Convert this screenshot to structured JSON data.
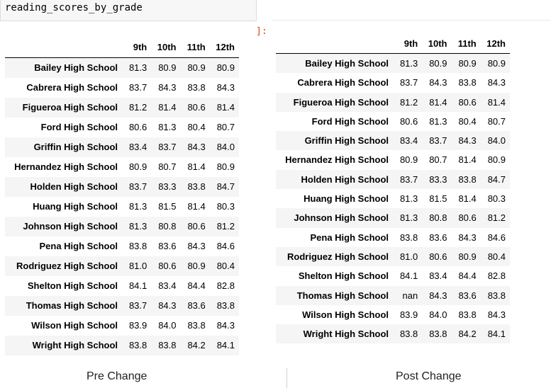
{
  "code_cell": {
    "text": "reading_scores_by_grade"
  },
  "prompt": "]:",
  "columns": [
    "9th",
    "10th",
    "11th",
    "12th"
  ],
  "pre_change": {
    "caption": "Pre Change",
    "rows": [
      {
        "school": "Bailey High School",
        "values": [
          "81.3",
          "80.9",
          "80.9",
          "80.9"
        ]
      },
      {
        "school": "Cabrera High School",
        "values": [
          "83.7",
          "84.3",
          "83.8",
          "84.3"
        ]
      },
      {
        "school": "Figueroa High School",
        "values": [
          "81.2",
          "81.4",
          "80.6",
          "81.4"
        ]
      },
      {
        "school": "Ford High School",
        "values": [
          "80.6",
          "81.3",
          "80.4",
          "80.7"
        ]
      },
      {
        "school": "Griffin High School",
        "values": [
          "83.4",
          "83.7",
          "84.3",
          "84.0"
        ]
      },
      {
        "school": "Hernandez High School",
        "values": [
          "80.9",
          "80.7",
          "81.4",
          "80.9"
        ]
      },
      {
        "school": "Holden High School",
        "values": [
          "83.7",
          "83.3",
          "83.8",
          "84.7"
        ]
      },
      {
        "school": "Huang High School",
        "values": [
          "81.3",
          "81.5",
          "81.4",
          "80.3"
        ]
      },
      {
        "school": "Johnson High School",
        "values": [
          "81.3",
          "80.8",
          "80.6",
          "81.2"
        ]
      },
      {
        "school": "Pena High School",
        "values": [
          "83.8",
          "83.6",
          "84.3",
          "84.6"
        ]
      },
      {
        "school": "Rodriguez High School",
        "values": [
          "81.0",
          "80.6",
          "80.9",
          "80.4"
        ]
      },
      {
        "school": "Shelton High School",
        "values": [
          "84.1",
          "83.4",
          "84.4",
          "82.8"
        ]
      },
      {
        "school": "Thomas High School",
        "values": [
          "83.7",
          "84.3",
          "83.6",
          "83.8"
        ]
      },
      {
        "school": "Wilson High School",
        "values": [
          "83.9",
          "84.0",
          "83.8",
          "84.3"
        ]
      },
      {
        "school": "Wright High School",
        "values": [
          "83.8",
          "83.8",
          "84.2",
          "84.1"
        ]
      }
    ]
  },
  "post_change": {
    "caption": "Post Change",
    "rows": [
      {
        "school": "Bailey High School",
        "values": [
          "81.3",
          "80.9",
          "80.9",
          "80.9"
        ]
      },
      {
        "school": "Cabrera High School",
        "values": [
          "83.7",
          "84.3",
          "83.8",
          "84.3"
        ]
      },
      {
        "school": "Figueroa High School",
        "values": [
          "81.2",
          "81.4",
          "80.6",
          "81.4"
        ]
      },
      {
        "school": "Ford High School",
        "values": [
          "80.6",
          "81.3",
          "80.4",
          "80.7"
        ]
      },
      {
        "school": "Griffin High School",
        "values": [
          "83.4",
          "83.7",
          "84.3",
          "84.0"
        ]
      },
      {
        "school": "Hernandez High School",
        "values": [
          "80.9",
          "80.7",
          "81.4",
          "80.9"
        ]
      },
      {
        "school": "Holden High School",
        "values": [
          "83.7",
          "83.3",
          "83.8",
          "84.7"
        ]
      },
      {
        "school": "Huang High School",
        "values": [
          "81.3",
          "81.5",
          "81.4",
          "80.3"
        ]
      },
      {
        "school": "Johnson High School",
        "values": [
          "81.3",
          "80.8",
          "80.6",
          "81.2"
        ]
      },
      {
        "school": "Pena High School",
        "values": [
          "83.8",
          "83.6",
          "84.3",
          "84.6"
        ]
      },
      {
        "school": "Rodriguez High School",
        "values": [
          "81.0",
          "80.6",
          "80.9",
          "80.4"
        ]
      },
      {
        "school": "Shelton High School",
        "values": [
          "84.1",
          "83.4",
          "84.4",
          "82.8"
        ]
      },
      {
        "school": "Thomas High School",
        "values": [
          "nan",
          "84.3",
          "83.6",
          "83.8"
        ]
      },
      {
        "school": "Wilson High School",
        "values": [
          "83.9",
          "84.0",
          "83.8",
          "84.3"
        ]
      },
      {
        "school": "Wright High School",
        "values": [
          "83.8",
          "83.8",
          "84.2",
          "84.1"
        ]
      }
    ]
  }
}
